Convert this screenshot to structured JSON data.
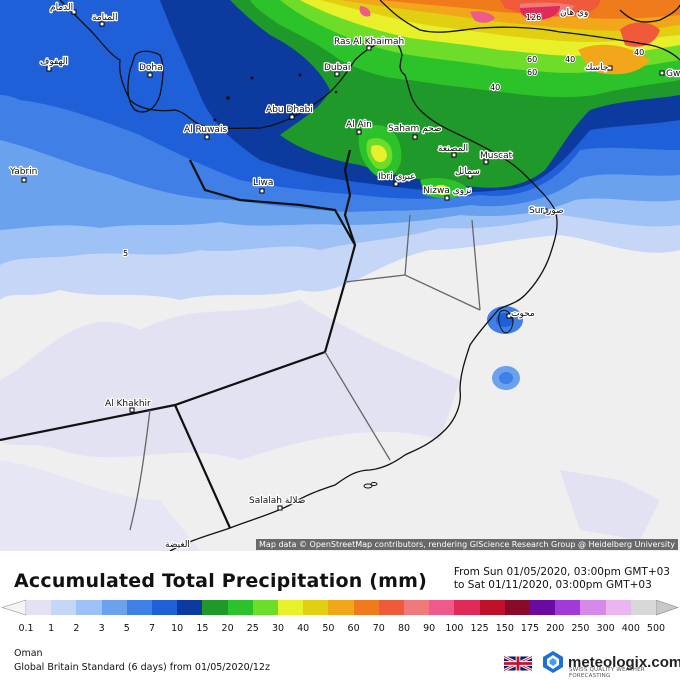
{
  "title": "Accumulated Total Precipitation (mm)",
  "period": {
    "from": "From Sun 01/05/2020, 03:00pm GMT+03",
    "to": "to Sat 01/11/2020, 03:00pm GMT+03"
  },
  "region": "Oman",
  "model": "Global Britain Standard (6 days) from 01/05/2020/12z",
  "brand": {
    "name": "meteologix.com",
    "tagline": "SWISS QUALITY WEATHER FORECASTING"
  },
  "attribution": "Map data © OpenStreetMap contributors, rendering GIScience Research Group @ Heidelberg University",
  "legend": {
    "ticks": [
      "0.1",
      "1",
      "2",
      "3",
      "5",
      "7",
      "10",
      "15",
      "20",
      "25",
      "30",
      "40",
      "50",
      "60",
      "70",
      "80",
      "90",
      "100",
      "125",
      "150",
      "175",
      "200",
      "250",
      "300",
      "400",
      "500"
    ],
    "colors": [
      "#e2e2f3",
      "#c6d6f7",
      "#9ec2f5",
      "#6aa2ee",
      "#3f7fe6",
      "#1f5fd8",
      "#0d3a9e",
      "#1f9a2a",
      "#2cc22a",
      "#6ddd2a",
      "#e8f02a",
      "#e2cf12",
      "#f2a61a",
      "#f07b1a",
      "#f05a3a",
      "#f07a7a",
      "#f05a8a",
      "#e02a5a",
      "#c0102a",
      "#8a0a2a",
      "#6a0aa0",
      "#a03ad8",
      "#d68ae8",
      "#eab6f0",
      "#d8d8d8"
    ],
    "no_data_color": "#f4f4f4",
    "overflow_color": "#c8c8c8"
  },
  "map": {
    "cities": [
      {
        "name": "الدمام"
      },
      {
        "name": "المنامة"
      },
      {
        "name": "الهفوف"
      },
      {
        "name": "Doha"
      },
      {
        "name": "Ras Al Khaimah"
      },
      {
        "name": "Dubai"
      },
      {
        "name": "Abu Dhabi"
      },
      {
        "name": "Al Ruwais"
      },
      {
        "name": "Al Ain"
      },
      {
        "name": "Saham صحم"
      },
      {
        "name": "المصنعة"
      },
      {
        "name": "Muscat"
      },
      {
        "name": "سمائل"
      },
      {
        "name": "Ibri عبري"
      },
      {
        "name": "Nizwa نزوى"
      },
      {
        "name": "Sur صور"
      },
      {
        "name": "Liwa"
      },
      {
        "name": "Yabrin"
      },
      {
        "name": "Al Khakhir"
      },
      {
        "name": "Salalah صلالة"
      },
      {
        "name": "الغيضة"
      },
      {
        "name": "وي هان"
      },
      {
        "name": "جاسك"
      },
      {
        "name": "Gw"
      },
      {
        "name": "محوت"
      }
    ],
    "values": [
      "126",
      "5",
      "40",
      "60",
      "60",
      "40",
      "40"
    ]
  }
}
